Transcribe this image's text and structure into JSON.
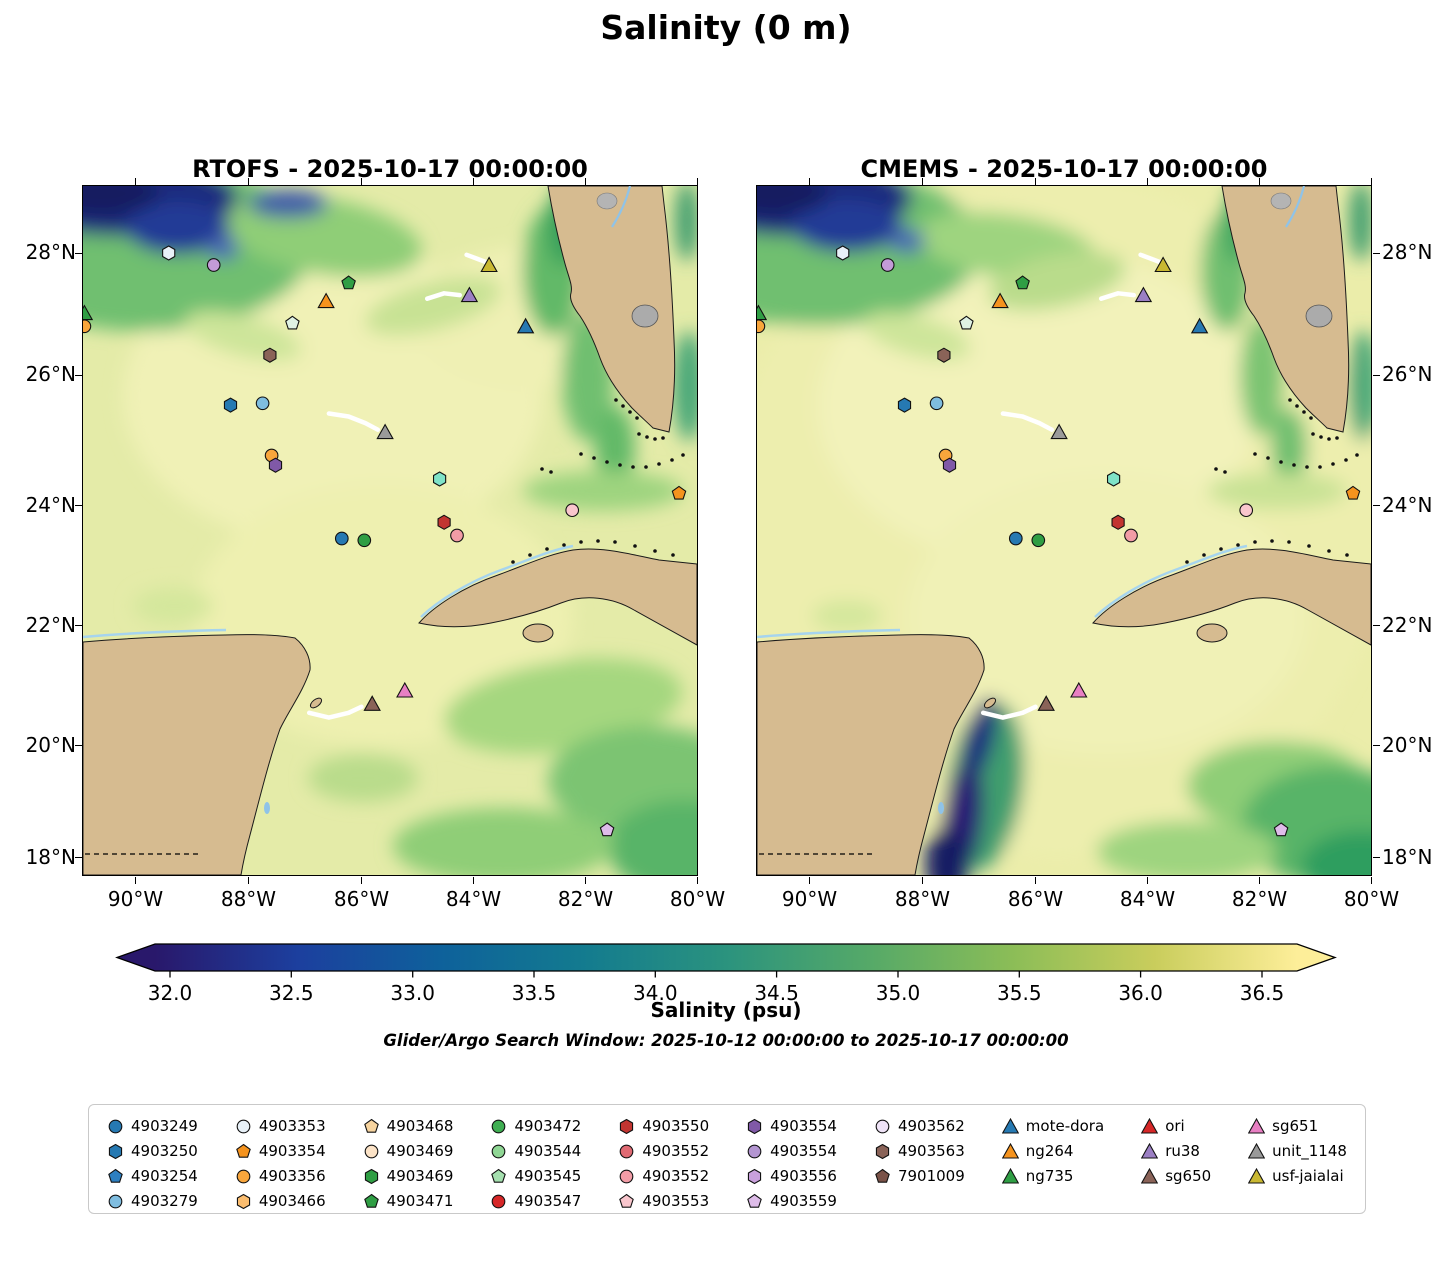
{
  "title": "Salinity (0 m)",
  "panels": [
    {
      "id": "rtofs",
      "title": "RTOFS - 2025-10-17 00:00:00"
    },
    {
      "id": "cmems",
      "title": "CMEMS - 2025-10-17 00:00:00"
    }
  ],
  "axes": {
    "lat_labels": [
      "28°N",
      "26°N",
      "24°N",
      "22°N",
      "20°N",
      "18°N"
    ],
    "lon_labels": [
      "90°W",
      "88°W",
      "86°W",
      "84°W",
      "82°W",
      "80°W"
    ]
  },
  "colorbar": {
    "label": "Salinity (psu)",
    "tick_labels": [
      "32.0",
      "32.5",
      "33.0",
      "33.5",
      "34.0",
      "34.5",
      "35.0",
      "35.5",
      "36.0",
      "36.5"
    ],
    "gradient": [
      "#29186b",
      "#1c3f9e",
      "#0e619b",
      "#137b8f",
      "#2b937e",
      "#55a968",
      "#8bbd57",
      "#c9cd5c",
      "#fdee99"
    ]
  },
  "search_window_note": "Glider/Argo Search Window: 2025-10-12 00:00:00 to 2025-10-17 00:00:00",
  "legend": {
    "columns": [
      [
        {
          "label": "4903249",
          "shape": "circle",
          "color": "#2679b2"
        },
        {
          "label": "4903250",
          "shape": "hexagon",
          "color": "#2679b2"
        },
        {
          "label": "4903254",
          "shape": "pentagon",
          "color": "#2d7fc0"
        },
        {
          "label": "4903279",
          "shape": "circle",
          "color": "#7fbde0"
        }
      ],
      [
        {
          "label": "4903353",
          "shape": "circle",
          "color": "#e8f1f8"
        },
        {
          "label": "4903354",
          "shape": "pentagon",
          "color": "#f5931e"
        },
        {
          "label": "4903356",
          "shape": "circle",
          "color": "#f9a63c"
        },
        {
          "label": "4903466",
          "shape": "hexagon",
          "color": "#fbbd6f"
        }
      ],
      [
        {
          "label": "4903468",
          "shape": "pentagon",
          "color": "#f7d49f"
        },
        {
          "label": "4903469",
          "shape": "circle",
          "color": "#fce3c7"
        },
        {
          "label": "4903469",
          "shape": "hexagon",
          "color": "#2f9e44"
        },
        {
          "label": "4903471",
          "shape": "pentagon",
          "color": "#2f9e44"
        }
      ],
      [
        {
          "label": "4903472",
          "shape": "circle",
          "color": "#3fae52"
        },
        {
          "label": "4903544",
          "shape": "circle",
          "color": "#8fd694"
        },
        {
          "label": "4903545",
          "shape": "pentagon",
          "color": "#a5e0af"
        },
        {
          "label": "4903547",
          "shape": "circle",
          "color": "#d62728"
        }
      ],
      [
        {
          "label": "4903550",
          "shape": "hexagon",
          "color": "#c23531"
        },
        {
          "label": "4903552",
          "shape": "circle",
          "color": "#e06a73"
        },
        {
          "label": "4903552",
          "shape": "circle",
          "color": "#f29ca6"
        },
        {
          "label": "4903553",
          "shape": "pentagon",
          "color": "#f9c6cd"
        }
      ],
      [
        {
          "label": "4903554",
          "shape": "hexagon",
          "color": "#8059a7"
        },
        {
          "label": "4903554",
          "shape": "circle",
          "color": "#b395d1"
        },
        {
          "label": "4903556",
          "shape": "hexagon",
          "color": "#c9a0dc"
        },
        {
          "label": "4903559",
          "shape": "pentagon",
          "color": "#debce9"
        }
      ],
      [
        {
          "label": "4903562",
          "shape": "circle",
          "color": "#efe3f7"
        },
        {
          "label": "4903563",
          "shape": "hexagon",
          "color": "#8a6358"
        },
        {
          "label": "7901009",
          "shape": "pentagon",
          "color": "#7a5248"
        }
      ],
      [
        {
          "label": "mote-dora",
          "shape": "triangle",
          "color": "#2679b2"
        },
        {
          "label": "ng264",
          "shape": "triangle",
          "color": "#f5931e"
        },
        {
          "label": "ng735",
          "shape": "triangle",
          "color": "#2f9e44"
        }
      ],
      [
        {
          "label": "ori",
          "shape": "triangle",
          "color": "#d62728"
        },
        {
          "label": "ru38",
          "shape": "triangle",
          "color": "#9b7fc3"
        },
        {
          "label": "sg650",
          "shape": "triangle",
          "color": "#8a6358"
        }
      ],
      [
        {
          "label": "sg651",
          "shape": "triangle",
          "color": "#e87fc3"
        },
        {
          "label": "unit_1148",
          "shape": "triangle",
          "color": "#9a9a9a"
        },
        {
          "label": "usf-jaialai",
          "shape": "triangle",
          "color": "#c9b832"
        }
      ]
    ]
  },
  "chart_data": {
    "type": "map",
    "title": "Salinity (0 m)",
    "variable": "salinity",
    "depth_m": 0,
    "units": "psu",
    "panels": [
      {
        "model": "RTOFS",
        "valid_time": "2025-10-17 00:00:00"
      },
      {
        "model": "CMEMS",
        "valid_time": "2025-10-17 00:00:00"
      }
    ],
    "extent": {
      "lon_min": -90.9,
      "lon_max": -80.0,
      "lat_min": 17.7,
      "lat_max": 29.1
    },
    "lon_ticks": [
      -90,
      -88,
      -86,
      -84,
      -82,
      -80
    ],
    "lat_ticks": [
      28,
      26,
      24,
      22,
      20,
      18
    ],
    "colorbar_range": {
      "vmin": 32.0,
      "vmax": 36.5,
      "extend": "both",
      "tick_step": 0.5
    },
    "search_window": {
      "start": "2025-10-12 00:00:00",
      "end": "2025-10-17 00:00:00"
    },
    "markers": [
      {
        "shape": "hexagon",
        "color": "#e8f1f8",
        "lon": -89.4,
        "lat": 28.0
      },
      {
        "shape": "circle",
        "color": "#c39bd8",
        "lon": -88.6,
        "lat": 27.8
      },
      {
        "shape": "pentagon",
        "color": "#2f9e44",
        "lon": -86.2,
        "lat": 27.5
      },
      {
        "shape": "triangle",
        "color": "#c9b832",
        "lon": -83.7,
        "lat": 27.8,
        "name": "usf-jaialai"
      },
      {
        "shape": "triangle",
        "color": "#f5931e",
        "lon": -86.6,
        "lat": 27.2,
        "name": "ng264"
      },
      {
        "shape": "triangle",
        "color": "#9b7fc3",
        "lon": -84.05,
        "lat": 27.3,
        "name": "ru38"
      },
      {
        "shape": "triangle",
        "color": "#2f9e44",
        "lon": -90.9,
        "lat": 27.0,
        "name": "ng735"
      },
      {
        "shape": "circle",
        "color": "#f9a63c",
        "lon": -90.9,
        "lat": 26.78
      },
      {
        "shape": "pentagon",
        "color": "#dff2e4",
        "lon": -87.2,
        "lat": 26.83
      },
      {
        "shape": "triangle",
        "color": "#2679b2",
        "lon": -83.05,
        "lat": 26.78,
        "name": "mote-dora"
      },
      {
        "shape": "hexagon",
        "color": "#8a6358",
        "lon": -87.6,
        "lat": 26.3
      },
      {
        "shape": "hexagon",
        "color": "#2679b2",
        "lon": -88.3,
        "lat": 25.47
      },
      {
        "shape": "circle",
        "color": "#7fbde0",
        "lon": -87.73,
        "lat": 25.5
      },
      {
        "shape": "triangle",
        "color": "#9a9a9a",
        "lon": -85.55,
        "lat": 25.02,
        "name": "unit_1148"
      },
      {
        "shape": "circle",
        "color": "#f9a63c",
        "lon": -87.57,
        "lat": 24.63
      },
      {
        "shape": "hexagon",
        "color": "#8059a7",
        "lon": -87.5,
        "lat": 24.47
      },
      {
        "shape": "hexagon",
        "color": "#7fe3c8",
        "lon": -84.58,
        "lat": 24.24
      },
      {
        "shape": "pentagon",
        "color": "#f5931e",
        "lon": -80.32,
        "lat": 24.0
      },
      {
        "shape": "circle",
        "color": "#f9c6cd",
        "lon": -82.22,
        "lat": 23.72
      },
      {
        "shape": "hexagon",
        "color": "#c23531",
        "lon": -84.5,
        "lat": 23.52
      },
      {
        "shape": "circle",
        "color": "#f29ca6",
        "lon": -84.27,
        "lat": 23.3
      },
      {
        "shape": "circle",
        "color": "#2679b2",
        "lon": -86.32,
        "lat": 23.25
      },
      {
        "shape": "circle",
        "color": "#2f9e44",
        "lon": -85.92,
        "lat": 23.22
      },
      {
        "shape": "triangle",
        "color": "#8a6358",
        "lon": -85.78,
        "lat": 20.5,
        "name": "sg650"
      },
      {
        "shape": "triangle",
        "color": "#e87fc3",
        "lon": -85.2,
        "lat": 20.72,
        "name": "sg651"
      },
      {
        "shape": "pentagon",
        "color": "#debce9",
        "lon": -81.6,
        "lat": 18.4
      }
    ],
    "tracks": [
      {
        "name": "usf-jaialai",
        "points": [
          [
            -84.1,
            27.97
          ],
          [
            -83.9,
            27.9
          ],
          [
            -83.76,
            27.85
          ]
        ]
      },
      {
        "name": "ru38",
        "points": [
          [
            -84.8,
            27.24
          ],
          [
            -84.5,
            27.33
          ],
          [
            -84.22,
            27.3
          ]
        ]
      },
      {
        "name": "unit_1148",
        "points": [
          [
            -86.55,
            25.33
          ],
          [
            -86.2,
            25.28
          ],
          [
            -85.9,
            25.17
          ],
          [
            -85.68,
            25.06
          ]
        ]
      },
      {
        "name": "sg650",
        "points": [
          [
            -86.9,
            20.35
          ],
          [
            -86.55,
            20.27
          ],
          [
            -86.2,
            20.35
          ],
          [
            -85.97,
            20.45
          ]
        ]
      }
    ]
  }
}
